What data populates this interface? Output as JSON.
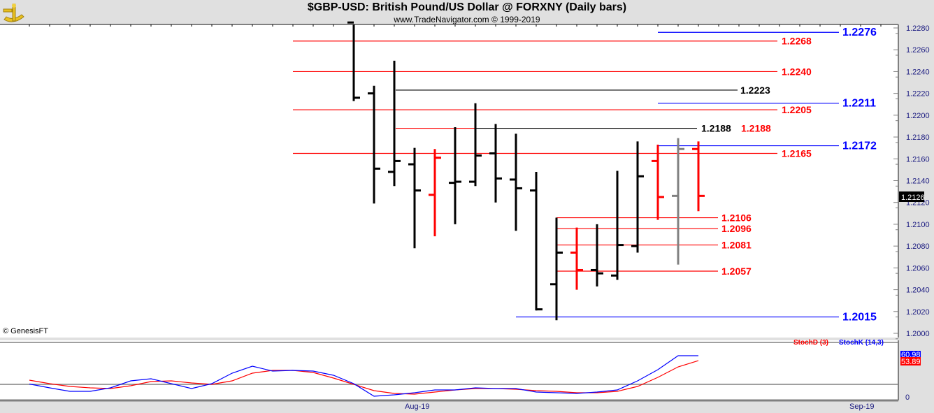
{
  "header": {
    "title": "$GBP-USD:  British Pound/US Dollar @ FORXNY  (Daily bars)",
    "subtitle": "www.TradeNavigator.com © 1999-2019",
    "logo": "sextant-logo"
  },
  "copyright": "© GenesisFT",
  "chart_data": [
    {
      "type": "ohlc",
      "ylim": [
        1.2,
        1.228
      ],
      "yticks": [
        "1.2280",
        "1.2260",
        "1.2240",
        "1.2220",
        "1.2200",
        "1.2180",
        "1.2160",
        "1.2140",
        "1.2120",
        "1.2100",
        "1.2080",
        "1.2060",
        "1.2040",
        "1.2020",
        "1.2000"
      ],
      "last_price_label": "1.2126",
      "bars": [
        {
          "o": 1.2285,
          "h": 1.2285,
          "l": 1.2213,
          "c": 1.2216,
          "color": "#000000"
        },
        {
          "o": 1.222,
          "h": 1.2227,
          "l": 1.2119,
          "c": 1.2151,
          "color": "#000000"
        },
        {
          "o": 1.2148,
          "h": 1.225,
          "l": 1.2135,
          "c": 1.2158,
          "color": "#000000"
        },
        {
          "o": 1.2155,
          "h": 1.217,
          "l": 1.2078,
          "c": 1.2131,
          "color": "#000000"
        },
        {
          "o": 1.2127,
          "h": 1.2169,
          "l": 1.2089,
          "c": 1.2161,
          "color": "#ff0000"
        },
        {
          "o": 1.2138,
          "h": 1.2189,
          "l": 1.21,
          "c": 1.2139,
          "color": "#000000"
        },
        {
          "o": 1.2139,
          "h": 1.2211,
          "l": 1.2135,
          "c": 1.2163,
          "color": "#000000"
        },
        {
          "o": 1.2165,
          "h": 1.2192,
          "l": 1.212,
          "c": 1.2142,
          "color": "#000000"
        },
        {
          "o": 1.2141,
          "h": 1.2183,
          "l": 1.2094,
          "c": 1.2133,
          "color": "#000000"
        },
        {
          "o": 1.2131,
          "h": 1.2148,
          "l": 1.2021,
          "c": 1.2022,
          "color": "#000000"
        },
        {
          "o": 1.2045,
          "h": 1.2106,
          "l": 1.2012,
          "c": 1.2074,
          "color": "#000000"
        },
        {
          "o": 1.2074,
          "h": 1.2097,
          "l": 1.204,
          "c": 1.2058,
          "color": "#ff0000"
        },
        {
          "o": 1.2058,
          "h": 1.21,
          "l": 1.2043,
          "c": 1.2055,
          "color": "#000000"
        },
        {
          "o": 1.2053,
          "h": 1.2149,
          "l": 1.2049,
          "c": 1.2081,
          "color": "#000000"
        },
        {
          "o": 1.208,
          "h": 1.2176,
          "l": 1.2074,
          "c": 1.2144,
          "color": "#000000"
        },
        {
          "o": 1.2158,
          "h": 1.2173,
          "l": 1.2104,
          "c": 1.2125,
          "color": "#ff0000"
        },
        {
          "o": 1.2126,
          "h": 1.2179,
          "l": 1.2063,
          "c": 1.2169,
          "color": "#808080"
        },
        {
          "o": 1.2169,
          "h": 1.2176,
          "l": 1.2112,
          "c": 1.2126,
          "color": "#ff0000"
        }
      ],
      "levels": [
        {
          "price": 1.2276,
          "label": "1.2276",
          "color": "#0000ff"
        },
        {
          "price": 1.2268,
          "label": "1.2268",
          "color": "#ff0000"
        },
        {
          "price": 1.224,
          "label": "1.2240",
          "color": "#ff0000"
        },
        {
          "price": 1.2223,
          "label": "1.2223",
          "color": "#000000"
        },
        {
          "price": 1.2211,
          "label": "1.2211",
          "color": "#0000ff"
        },
        {
          "price": 1.2205,
          "label": "1.2205",
          "color": "#ff0000"
        },
        {
          "price": 1.2188,
          "label": "1.2188",
          "color": "#000000"
        },
        {
          "price": 1.2188,
          "label": "1.2188",
          "color": "#ff0000"
        },
        {
          "price": 1.2172,
          "label": "1.2172",
          "color": "#0000ff"
        },
        {
          "price": 1.2165,
          "label": "1.2165",
          "color": "#ff0000"
        },
        {
          "price": 1.2106,
          "label": "1.2106",
          "color": "#ff0000"
        },
        {
          "price": 1.2096,
          "label": "1.2096",
          "color": "#ff0000"
        },
        {
          "price": 1.2081,
          "label": "1.2081",
          "color": "#ff0000"
        },
        {
          "price": 1.2057,
          "label": "1.2057",
          "color": "#ff0000"
        },
        {
          "price": 1.2015,
          "label": "1.2015",
          "color": "#0000ff"
        }
      ]
    },
    {
      "type": "line",
      "ylim": [
        0,
        100
      ],
      "yticks": [
        "0"
      ],
      "reference_lines": [
        20,
        80
      ],
      "xticks": [
        "Aug-19",
        "Sep-19"
      ],
      "series": [
        {
          "name": "StochD (3)",
          "color": "#ff0000",
          "last_label": "53.89",
          "values": [
            26,
            21,
            17,
            15,
            14,
            18,
            24,
            25,
            22,
            20,
            25,
            36,
            40,
            40,
            37,
            29,
            20,
            11,
            7,
            6,
            9,
            12,
            14,
            14,
            13,
            11,
            10,
            8,
            8,
            10,
            17,
            30,
            45,
            53.89
          ]
        },
        {
          "name": "StochK (14,3)",
          "color": "#0000ff",
          "last_label": "60.98",
          "values": [
            20.5,
            15,
            10,
            10,
            15,
            25,
            28,
            21,
            14,
            21,
            36,
            46,
            39,
            40,
            39,
            33,
            21,
            3,
            5,
            8,
            12,
            12,
            15,
            14,
            14,
            9,
            8,
            7,
            9,
            12,
            25,
            41,
            60.98,
            60.98
          ]
        }
      ]
    }
  ]
}
